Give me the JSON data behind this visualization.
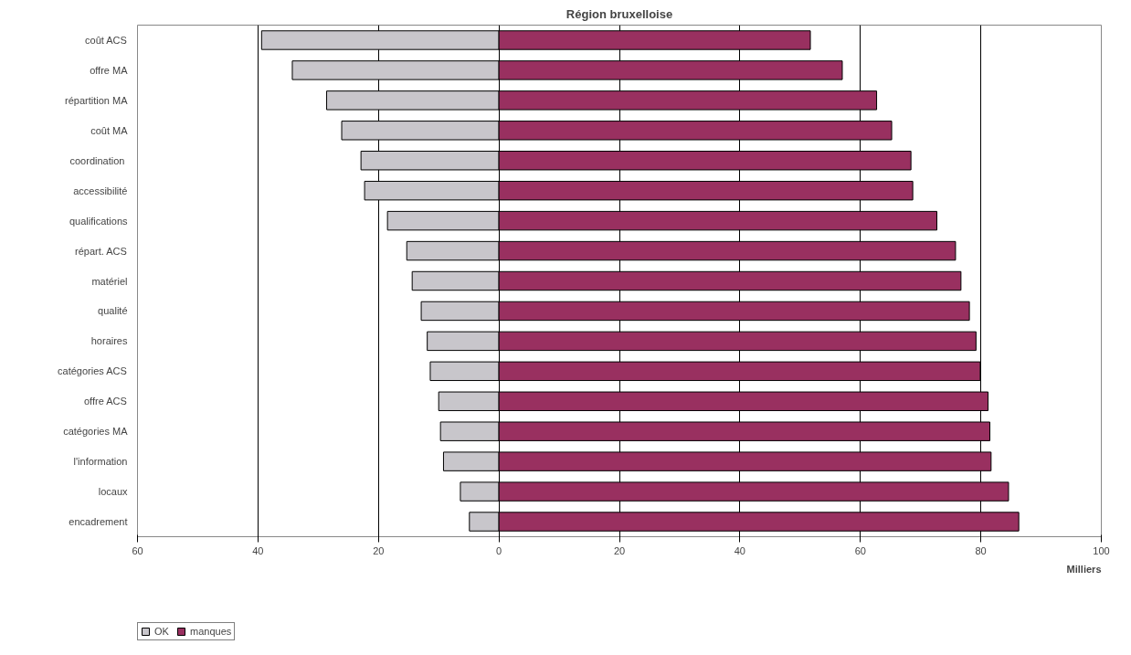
{
  "chart_data": {
    "type": "bar",
    "orientation": "horizontal",
    "title": "Région bruxelloise",
    "xlabel": "Milliers",
    "categories": [
      "coût ACS",
      "offre MA",
      "répartition MA",
      "coût MA",
      "coordination ",
      "accessibilité",
      "qualifications",
      "répart. ACS",
      "matériel",
      "qualité",
      "horaires",
      "catégories ACS",
      "offre ACS",
      "catégories MA",
      "l'information",
      "locaux",
      "encadrement"
    ],
    "series": [
      {
        "name": "OK",
        "color": "#c8c6cb",
        "values": [
          -39.4,
          -34.3,
          -28.6,
          -26.1,
          -22.9,
          -22.3,
          -18.5,
          -15.3,
          -14.4,
          -12.9,
          -11.9,
          -11.4,
          -10.0,
          -9.7,
          -9.2,
          -6.4,
          -4.9
        ]
      },
      {
        "name": "manques",
        "color": "#993060",
        "values": [
          51.7,
          57.0,
          62.7,
          65.2,
          68.4,
          68.7,
          72.7,
          75.8,
          76.7,
          78.1,
          79.2,
          79.9,
          81.2,
          81.5,
          81.7,
          84.6,
          86.3
        ]
      }
    ],
    "xlim": [
      -60,
      100
    ],
    "xticks": [
      {
        "value": -60,
        "label": "60"
      },
      {
        "value": -40,
        "label": "40"
      },
      {
        "value": -20,
        "label": "20"
      },
      0,
      20,
      40,
      60,
      80,
      100
    ],
    "stacked": true,
    "grid": "x",
    "legend": "bottom left"
  }
}
